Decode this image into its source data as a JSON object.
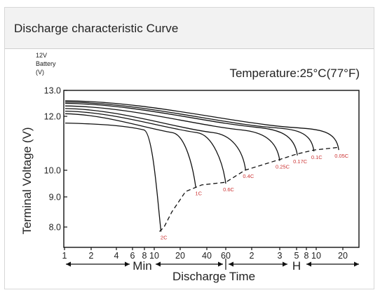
{
  "header": {
    "title": "Discharge characteristic Curve"
  },
  "chart_data": {
    "type": "line",
    "title": "Discharge characteristic Curve",
    "subtitle": "Temperature:25°C(77°F)",
    "ylabel": "Terminal Voltage (V)",
    "y_unit_label": [
      "12V",
      "Battery",
      "(V)"
    ],
    "xlabel": "Discharge Time",
    "x_scale": "log",
    "x_unit_labels": [
      "Min",
      "H"
    ],
    "ylim": [
      7.5,
      13.0
    ],
    "yticks": [
      {
        "label": "13.0",
        "value": 13.0
      },
      {
        "label": "12.0",
        "value": 12.0
      },
      {
        "label": "10.0",
        "value": 10.0
      },
      {
        "label": "9.0",
        "value": 9.0
      },
      {
        "label": "8.0",
        "value": 8.0
      }
    ],
    "xticks": [
      {
        "label": "1",
        "minutes": 1
      },
      {
        "label": "2",
        "minutes": 2
      },
      {
        "label": "4",
        "minutes": 4
      },
      {
        "label": "6",
        "minutes": 6
      },
      {
        "label": "8",
        "minutes": 8
      },
      {
        "label": "10",
        "minutes": 10
      },
      {
        "label": "20",
        "minutes": 20
      },
      {
        "label": "40",
        "minutes": 40
      },
      {
        "label": "60",
        "minutes": 60
      },
      {
        "label": "2",
        "minutes": 120
      },
      {
        "label": "3",
        "minutes": 180
      },
      {
        "label": "5",
        "minutes": 300
      },
      {
        "label": "8",
        "minutes": 480
      },
      {
        "label": "10",
        "minutes": 600
      },
      {
        "label": "20",
        "minutes": 1200
      }
    ],
    "grid": false,
    "series": [
      {
        "name": "2C",
        "start_v": 11.75,
        "plateau_v": 11.6,
        "end_minutes": 12,
        "end_v": 7.85
      },
      {
        "name": "1C",
        "start_v": 12.1,
        "plateau_v": 11.5,
        "end_minutes": 30,
        "end_v": 9.35
      },
      {
        "name": "0.6C",
        "start_v": 12.2,
        "plateau_v": 11.5,
        "end_minutes": 60,
        "end_v": 9.5
      },
      {
        "name": "0.4C",
        "start_v": 12.3,
        "plateau_v": 11.5,
        "end_minutes": 102,
        "end_v": 10.0
      },
      {
        "name": "0.25C",
        "start_v": 12.4,
        "plateau_v": 11.6,
        "end_minutes": 180,
        "end_v": 10.35
      },
      {
        "name": "0.17C",
        "start_v": 12.5,
        "plateau_v": 11.7,
        "end_minutes": 312,
        "end_v": 10.55
      },
      {
        "name": "0.1C",
        "start_v": 12.55,
        "plateau_v": 11.7,
        "end_minutes": 570,
        "end_v": 10.7
      },
      {
        "name": "0.05C",
        "start_v": 12.6,
        "plateau_v": 11.7,
        "end_minutes": 1080,
        "end_v": 10.75
      }
    ],
    "cutoff_curve": [
      {
        "minutes": 11.5,
        "v": 7.85
      },
      {
        "minutes": 13,
        "v": 8.0
      },
      {
        "minutes": 16,
        "v": 8.5
      },
      {
        "minutes": 23,
        "v": 9.2
      },
      {
        "minutes": 35,
        "v": 9.45
      },
      {
        "minutes": 60,
        "v": 9.55
      },
      {
        "minutes": 100,
        "v": 10.0
      },
      {
        "minutes": 180,
        "v": 10.4
      },
      {
        "minutes": 300,
        "v": 10.6
      },
      {
        "minutes": 570,
        "v": 10.75
      },
      {
        "minutes": 1080,
        "v": 10.85
      }
    ],
    "colors": {
      "curve": "#111111",
      "label": "#cc3333",
      "axis": "#111111"
    }
  }
}
